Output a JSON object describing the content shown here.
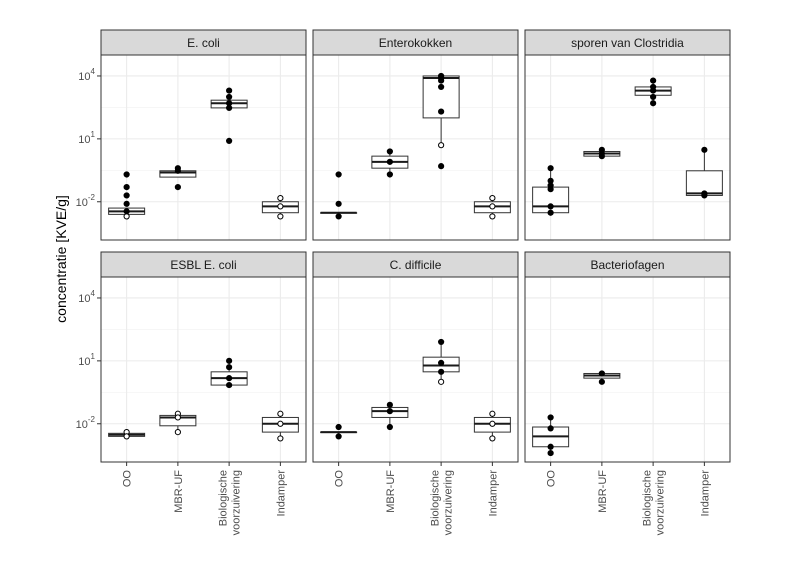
{
  "chart_data": {
    "type": "boxplot",
    "ylabel": "concentratie [KVE/g]",
    "yscale": "log10",
    "ylim": [
      0.00015,
      100000
    ],
    "y_ticks": [
      {
        "value": 0.01,
        "base": "10",
        "exp": "-2"
      },
      {
        "value": 10,
        "base": "10",
        "exp": "1"
      },
      {
        "value": 10000,
        "base": "10",
        "exp": "4"
      }
    ],
    "categories": [
      "OO",
      "MBR-UF",
      "Biologische voorzuivering",
      "Indamper"
    ],
    "category_lines": [
      [
        "OO"
      ],
      [
        "MBR-UF"
      ],
      [
        "Biologische",
        "voorzuivering"
      ],
      [
        "Indamper"
      ]
    ],
    "grid": true,
    "facets": [
      {
        "title": "E. coli",
        "groups": [
          {
            "category": "OO",
            "q1": 0.0025,
            "median": 0.0035,
            "q3": 0.005,
            "whisker_low": 0.002,
            "whisker_high": 0.005,
            "points": [
              {
                "y": 0.2,
                "filled": true
              },
              {
                "y": 0.05,
                "filled": true
              },
              {
                "y": 0.02,
                "filled": true
              },
              {
                "y": 0.008,
                "filled": true
              },
              {
                "y": 0.0035,
                "filled": true
              },
              {
                "y": 0.002,
                "filled": false
              }
            ]
          },
          {
            "category": "MBR-UF",
            "q1": 0.15,
            "median": 0.25,
            "q3": 0.3,
            "whisker_low": 0.15,
            "whisker_high": 0.3,
            "points": [
              {
                "y": 0.4,
                "filled": true
              },
              {
                "y": 0.3,
                "filled": true
              },
              {
                "y": 0.05,
                "filled": true
              }
            ]
          },
          {
            "category": "Biologische voorzuivering",
            "q1": 300,
            "median": 500,
            "q3": 700,
            "whisker_low": 300,
            "whisker_high": 700,
            "points": [
              {
                "y": 2000,
                "filled": true
              },
              {
                "y": 1000,
                "filled": true
              },
              {
                "y": 500,
                "filled": true
              },
              {
                "y": 300,
                "filled": true
              },
              {
                "y": 8,
                "filled": true
              }
            ]
          },
          {
            "category": "Indamper",
            "q1": 0.003,
            "median": 0.006,
            "q3": 0.01,
            "whisker_low": 0.002,
            "whisker_high": 0.015,
            "points": [
              {
                "y": 0.015,
                "filled": false
              },
              {
                "y": 0.006,
                "filled": false
              },
              {
                "y": 0.002,
                "filled": false
              }
            ]
          }
        ]
      },
      {
        "title": "Enterokokken",
        "groups": [
          {
            "category": "OO",
            "q1": 0.003,
            "median": 0.003,
            "q3": 0.003,
            "whisker_low": 0.002,
            "whisker_high": 0.003,
            "points": [
              {
                "y": 0.2,
                "filled": true
              },
              {
                "y": 0.008,
                "filled": true
              },
              {
                "y": 0.002,
                "filled": true
              }
            ]
          },
          {
            "category": "MBR-UF",
            "q1": 0.4,
            "median": 0.8,
            "q3": 1.5,
            "whisker_low": 0.2,
            "whisker_high": 2.5,
            "points": [
              {
                "y": 2.5,
                "filled": true
              },
              {
                "y": 0.8,
                "filled": true
              },
              {
                "y": 0.2,
                "filled": true
              }
            ]
          },
          {
            "category": "Biologische voorzuivering",
            "q1": 100,
            "median": 8000,
            "q3": 10000,
            "whisker_low": 5,
            "whisker_high": 10000,
            "points": [
              {
                "y": 10000,
                "filled": true
              },
              {
                "y": 8000,
                "filled": true
              },
              {
                "y": 6000,
                "filled": true
              },
              {
                "y": 3000,
                "filled": true
              },
              {
                "y": 200,
                "filled": true
              },
              {
                "y": 5,
                "filled": false
              },
              {
                "y": 0.5,
                "filled": true
              }
            ]
          },
          {
            "category": "Indamper",
            "q1": 0.003,
            "median": 0.006,
            "q3": 0.01,
            "whisker_low": 0.002,
            "whisker_high": 0.015,
            "points": [
              {
                "y": 0.015,
                "filled": false
              },
              {
                "y": 0.006,
                "filled": false
              },
              {
                "y": 0.002,
                "filled": false
              }
            ]
          }
        ]
      },
      {
        "title": "sporen van Clostridia",
        "groups": [
          {
            "category": "OO",
            "q1": 0.003,
            "median": 0.006,
            "q3": 0.05,
            "whisker_low": 0.003,
            "whisker_high": 0.4,
            "points": [
              {
                "y": 0.4,
                "filled": true
              },
              {
                "y": 0.1,
                "filled": true
              },
              {
                "y": 0.06,
                "filled": true
              },
              {
                "y": 0.04,
                "filled": true
              },
              {
                "y": 0.006,
                "filled": true
              },
              {
                "y": 0.003,
                "filled": true
              }
            ]
          },
          {
            "category": "MBR-UF",
            "q1": 1.5,
            "median": 2,
            "q3": 2.5,
            "whisker_low": 1.5,
            "whisker_high": 3,
            "points": [
              {
                "y": 3,
                "filled": true
              },
              {
                "y": 2,
                "filled": true
              },
              {
                "y": 1.5,
                "filled": true
              }
            ]
          },
          {
            "category": "Biologische voorzuivering",
            "q1": 1200,
            "median": 2000,
            "q3": 3000,
            "whisker_low": 500,
            "whisker_high": 6000,
            "points": [
              {
                "y": 6000,
                "filled": true
              },
              {
                "y": 3000,
                "filled": true
              },
              {
                "y": 2000,
                "filled": true
              },
              {
                "y": 1000,
                "filled": true
              },
              {
                "y": 500,
                "filled": true
              }
            ]
          },
          {
            "category": "Indamper",
            "q1": 0.02,
            "median": 0.025,
            "q3": 0.3,
            "whisker_low": 0.02,
            "whisker_high": 3,
            "points": [
              {
                "y": 3,
                "filled": true
              },
              {
                "y": 0.025,
                "filled": true
              },
              {
                "y": 0.02,
                "filled": true
              }
            ]
          }
        ]
      },
      {
        "title": "ESBL E. coli",
        "groups": [
          {
            "category": "OO",
            "q1": 0.0025,
            "median": 0.003,
            "q3": 0.0035,
            "whisker_low": 0.0025,
            "whisker_high": 0.004,
            "points": [
              {
                "y": 0.004,
                "filled": false
              },
              {
                "y": 0.0025,
                "filled": false
              }
            ]
          },
          {
            "category": "MBR-UF",
            "q1": 0.008,
            "median": 0.02,
            "q3": 0.025,
            "whisker_low": 0.004,
            "whisker_high": 0.03,
            "points": [
              {
                "y": 0.03,
                "filled": false
              },
              {
                "y": 0.02,
                "filled": false
              },
              {
                "y": 0.004,
                "filled": false
              }
            ]
          },
          {
            "category": "Biologische voorzuivering",
            "q1": 0.7,
            "median": 1.5,
            "q3": 3,
            "whisker_low": 0.6,
            "whisker_high": 10,
            "points": [
              {
                "y": 10,
                "filled": true
              },
              {
                "y": 5,
                "filled": true
              },
              {
                "y": 1.5,
                "filled": true
              },
              {
                "y": 0.7,
                "filled": true
              }
            ]
          },
          {
            "category": "Indamper",
            "q1": 0.004,
            "median": 0.01,
            "q3": 0.02,
            "whisker_low": 0.002,
            "whisker_high": 0.03,
            "points": [
              {
                "y": 0.03,
                "filled": false
              },
              {
                "y": 0.01,
                "filled": false
              },
              {
                "y": 0.002,
                "filled": false
              }
            ]
          }
        ]
      },
      {
        "title": "C. difficile",
        "groups": [
          {
            "category": "OO",
            "q1": 0.004,
            "median": 0.004,
            "q3": 0.004,
            "whisker_low": 0.0025,
            "whisker_high": 0.004,
            "points": [
              {
                "y": 0.007,
                "filled": true
              },
              {
                "y": 0.0025,
                "filled": true
              }
            ]
          },
          {
            "category": "MBR-UF",
            "q1": 0.02,
            "median": 0.04,
            "q3": 0.06,
            "whisker_low": 0.007,
            "whisker_high": 0.08,
            "points": [
              {
                "y": 0.08,
                "filled": true
              },
              {
                "y": 0.04,
                "filled": true
              },
              {
                "y": 0.007,
                "filled": true
              }
            ]
          },
          {
            "category": "Biologische voorzuivering",
            "q1": 3,
            "median": 6,
            "q3": 15,
            "whisker_low": 1,
            "whisker_high": 80,
            "points": [
              {
                "y": 80,
                "filled": true
              },
              {
                "y": 8,
                "filled": true
              },
              {
                "y": 3,
                "filled": true
              },
              {
                "y": 1,
                "filled": false
              }
            ]
          },
          {
            "category": "Indamper",
            "q1": 0.004,
            "median": 0.01,
            "q3": 0.02,
            "whisker_low": 0.002,
            "whisker_high": 0.03,
            "points": [
              {
                "y": 0.03,
                "filled": false
              },
              {
                "y": 0.01,
                "filled": false
              },
              {
                "y": 0.002,
                "filled": false
              }
            ]
          }
        ]
      },
      {
        "title": "Bacteriofagen",
        "groups": [
          {
            "category": "OO",
            "q1": 0.0008,
            "median": 0.0025,
            "q3": 0.007,
            "whisker_low": 0.0004,
            "whisker_high": 0.02,
            "points": [
              {
                "y": 0.02,
                "filled": true
              },
              {
                "y": 0.006,
                "filled": true
              },
              {
                "y": 0.0008,
                "filled": true
              },
              {
                "y": 0.0004,
                "filled": true
              }
            ]
          },
          {
            "category": "MBR-UF",
            "q1": 1.5,
            "median": 2,
            "q3": 2.5,
            "whisker_low": 1,
            "whisker_high": 2.5,
            "points": [
              {
                "y": 2.5,
                "filled": true
              },
              {
                "y": 1,
                "filled": true
              }
            ]
          },
          {
            "category": "Biologische voorzuivering",
            "points": []
          },
          {
            "category": "Indamper",
            "points": []
          }
        ]
      }
    ]
  }
}
